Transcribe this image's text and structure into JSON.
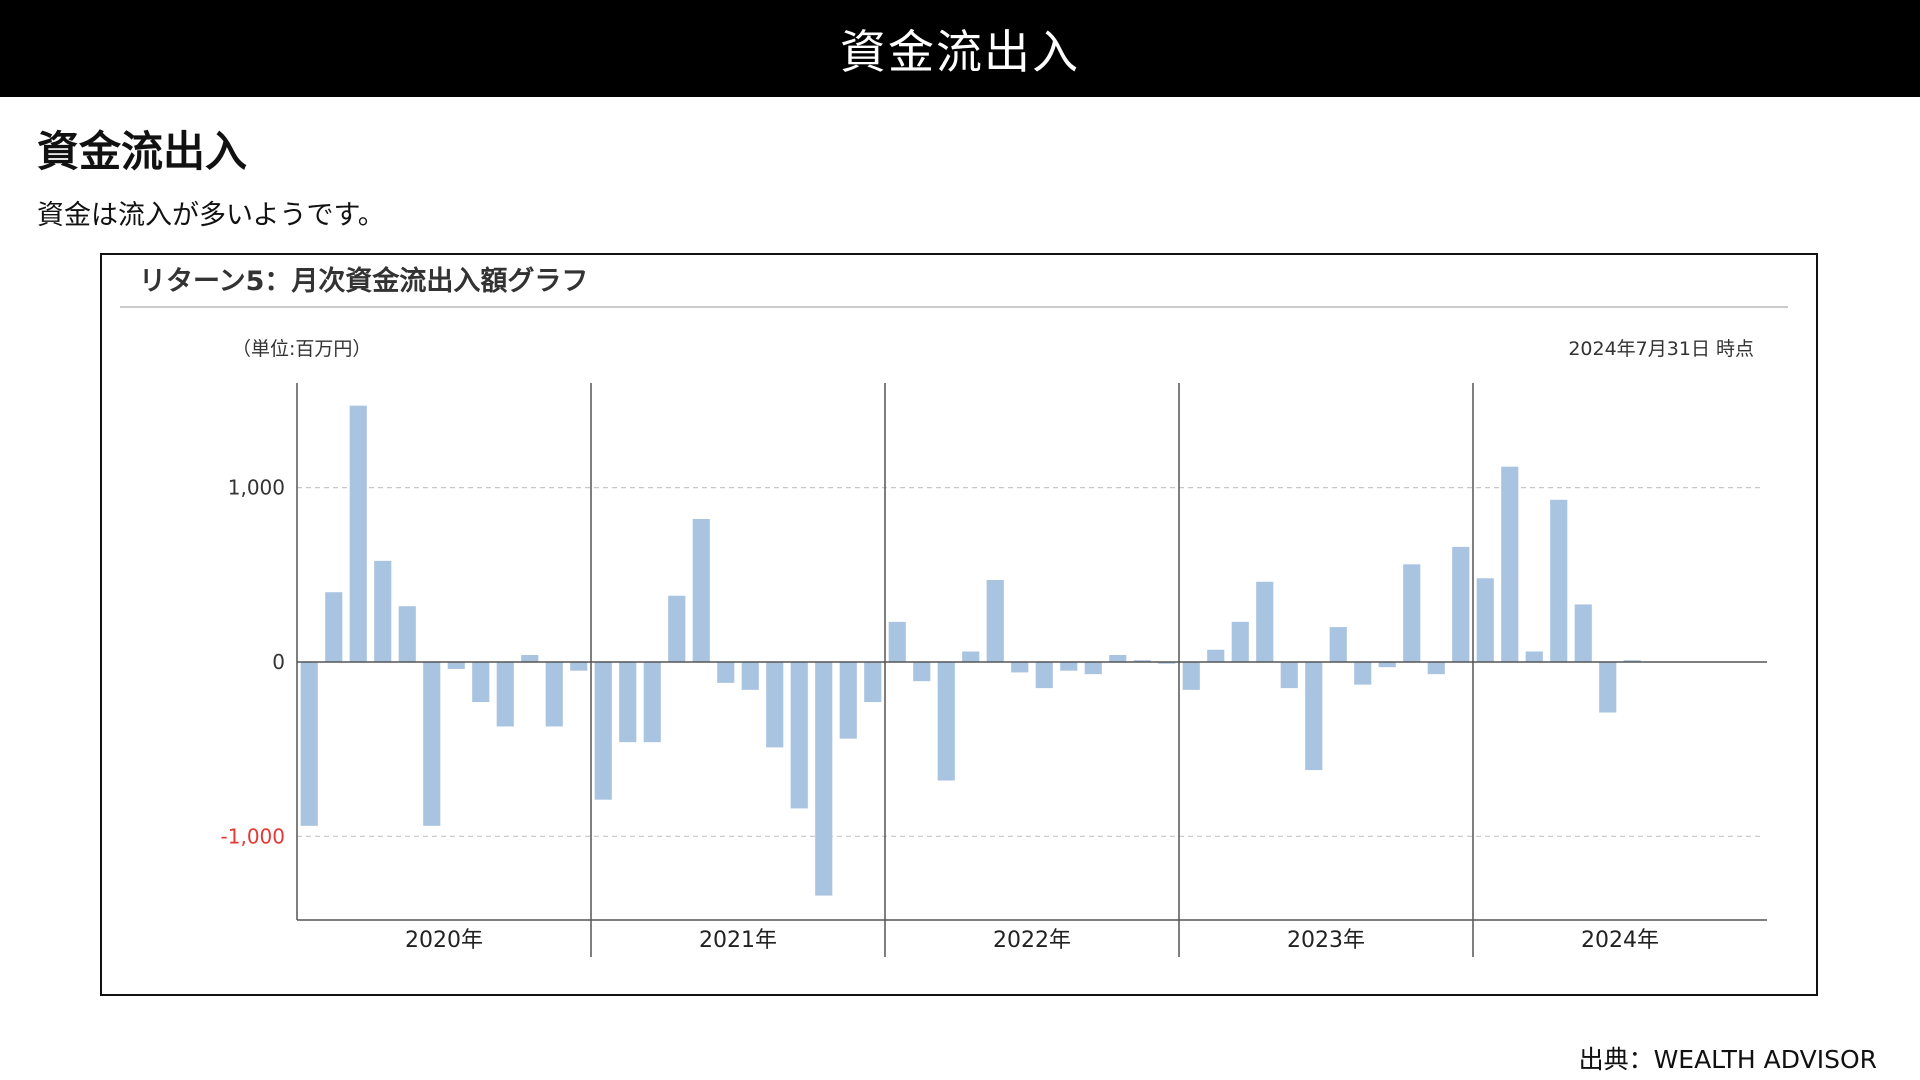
{
  "header": {
    "title": "資金流出入"
  },
  "section": {
    "title": "資金流出入",
    "description": "資金は流入が多いようです。"
  },
  "chart_data": {
    "type": "bar",
    "title": "リターン5：月次資金流出入額グラフ",
    "unit_label": "（単位:百万円）",
    "as_of": "2024年7月31日 時点",
    "ylim": [
      -1480,
      1600
    ],
    "y_ticks": [
      {
        "value": 1000,
        "label": "1,000"
      },
      {
        "value": 0,
        "label": "0"
      },
      {
        "value": -1000,
        "label": "-1,000"
      }
    ],
    "negative_tick_color": "#e53935",
    "bar_color": "#a9c4e1",
    "years": [
      "2020年",
      "2021年",
      "2022年",
      "2023年",
      "2024年"
    ],
    "values": [
      [
        -940,
        400,
        1470,
        580,
        320,
        -940,
        -40,
        -230,
        -370,
        40,
        -370,
        -50
      ],
      [
        -790,
        -460,
        -460,
        380,
        820,
        -120,
        -160,
        -490,
        -840,
        -1340,
        -440,
        -230
      ],
      [
        230,
        -110,
        -680,
        60,
        470,
        -60,
        -150,
        -50,
        -70,
        40,
        10,
        -10
      ],
      [
        -160,
        70,
        230,
        460,
        -150,
        -620,
        200,
        -130,
        -30,
        560,
        -70,
        660
      ],
      [
        480,
        1120,
        60,
        930,
        330,
        -290,
        10
      ]
    ],
    "grid": true
  },
  "source": {
    "text": "出典：WEALTH ADVISOR"
  }
}
